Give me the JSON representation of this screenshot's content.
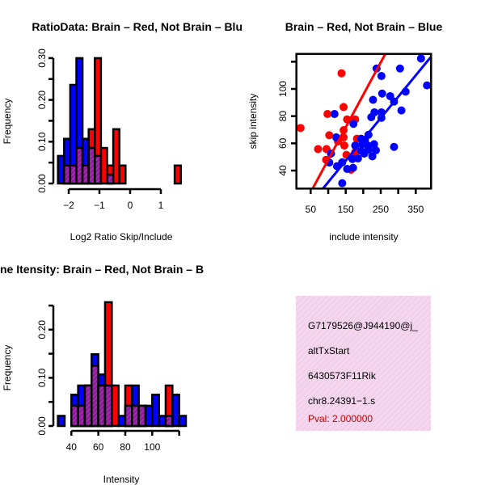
{
  "colors": {
    "group_a": "#ff0000",
    "group_b": "#0000ff",
    "overlap": "#8b1c9c",
    "panel_bg": "#f6d6ef"
  },
  "chart_data": [
    {
      "type": "bar",
      "title": "RatioData: Brain – Red, Not Brain – Blu",
      "xlabel": "Log2 Ratio Skip/Include",
      "ylabel": "Frequency",
      "bin_start": -2.35,
      "bin_width": 0.2,
      "xticks": [
        -2,
        -1,
        0,
        1
      ],
      "xtick_labels": [
        "−2",
        "−1",
        "0",
        "1"
      ],
      "yticks": [
        0,
        0.05,
        0.1,
        0.15,
        0.2,
        0.25,
        0.3
      ],
      "ytick_labels": [
        "0.00",
        "",
        "0.10",
        "",
        "0.20",
        "",
        "0.30"
      ],
      "ylim": [
        0,
        0.3
      ],
      "series": [
        {
          "name": "Not Brain",
          "color": "blue",
          "values": [
            0.066,
            0.107,
            0.236,
            0.3,
            0.107,
            0.085,
            0.066,
            0,
            0.021,
            0,
            0,
            0,
            0,
            0,
            0,
            0,
            0,
            0,
            0,
            0
          ]
        },
        {
          "name": "Brain",
          "color": "red",
          "values": [
            0,
            0.043,
            0.043,
            0.085,
            0.043,
            0.13,
            0.3,
            0.085,
            0.043,
            0.13,
            0.043,
            0,
            0,
            0,
            0,
            0,
            0,
            0,
            0,
            0.043
          ]
        }
      ]
    },
    {
      "type": "scatter",
      "title": "Brain – Red, Not Brain – Blue",
      "xlabel": "include intensity",
      "ylabel": "skip intensity",
      "xlim": [
        9,
        394
      ],
      "ylim": [
        26.7,
        125.7
      ],
      "xticks": [
        50,
        100,
        150,
        200,
        250,
        300,
        350
      ],
      "xtick_labels": [
        "50",
        "",
        "150",
        "",
        "250",
        "",
        "350"
      ],
      "yticks": [
        40,
        60,
        80,
        100,
        120
      ],
      "ytick_labels": [
        "40",
        "60",
        "80",
        "100",
        ""
      ],
      "series": [
        {
          "name": "Brain",
          "color": "red",
          "fit": {
            "slope": 0.477,
            "intercept": 0.27
          },
          "points": [
            [
              21,
              71.3
            ],
            [
              138,
              111.5
            ],
            [
              144,
              86.7
            ],
            [
              98,
              81.6
            ],
            [
              154,
              77.6
            ],
            [
              177,
              77.6
            ],
            [
              144,
              69.7
            ],
            [
              103,
              66
            ],
            [
              126,
              63.4
            ],
            [
              144,
              64.4
            ],
            [
              146,
              58.4
            ],
            [
              182,
              63.4
            ],
            [
              71,
              55.8
            ],
            [
              95,
              55.8
            ],
            [
              152,
              51.5
            ],
            [
              94,
              47.9
            ],
            [
              177,
              53.5
            ],
            [
              165,
              40.6
            ],
            [
              128,
              61.4
            ]
          ]
        },
        {
          "name": "Not Brain",
          "color": "blue",
          "fit": {
            "slope": 0.314,
            "intercept": 0.1
          },
          "points": [
            [
              365,
              122.4
            ],
            [
              238,
              115
            ],
            [
              305,
              115
            ],
            [
              252,
              109.5
            ],
            [
              382,
              102.6
            ],
            [
              254,
              96.6
            ],
            [
              277,
              94.7
            ],
            [
              321,
              98
            ],
            [
              228,
              92
            ],
            [
              288,
              90.7
            ],
            [
              309,
              84.2
            ],
            [
              118,
              81.6
            ],
            [
              232,
              82.8
            ],
            [
              252,
              82.8
            ],
            [
              223,
              79.2
            ],
            [
              252,
              78.8
            ],
            [
              172,
              74.3
            ],
            [
              215,
              66.3
            ],
            [
              123,
              64.4
            ],
            [
              194,
              63.4
            ],
            [
              205,
              62.4
            ],
            [
              177,
              58.4
            ],
            [
              197,
              59.4
            ],
            [
              213,
              58.4
            ],
            [
              231,
              59.4
            ],
            [
              194,
              54.5
            ],
            [
              215,
              55.4
            ],
            [
              236,
              54.9
            ],
            [
              288,
              57.4
            ],
            [
              203,
              52.5
            ],
            [
              226,
              50.5
            ],
            [
              108,
              52.5
            ],
            [
              103,
              45.9
            ],
            [
              125,
              43.2
            ],
            [
              140,
              46.1
            ],
            [
              169,
              48.5
            ],
            [
              185,
              48.9
            ],
            [
              154,
              41.2
            ],
            [
              171,
              42
            ],
            [
              140,
              30.7
            ]
          ]
        }
      ]
    },
    {
      "type": "bar",
      "title": "ne Itensity: Brain – Red, Not Brain – B",
      "xlabel": "Intensity",
      "ylabel": "Frequency",
      "bin_start": 30,
      "bin_width": 5,
      "xticks": [
        40,
        60,
        80,
        100,
        120
      ],
      "xtick_labels": [
        "40",
        "60",
        "80",
        "100",
        ""
      ],
      "yticks": [
        0,
        0.05,
        0.1,
        0.15,
        0.2,
        0.25
      ],
      "ytick_labels": [
        "0.00",
        "",
        "0.10",
        "",
        "0.20",
        ""
      ],
      "ylim": [
        0,
        0.257
      ],
      "series": [
        {
          "name": "Not Brain",
          "color": "blue",
          "values": [
            0.021,
            0,
            0.065,
            0.084,
            0.084,
            0.149,
            0.107,
            0.084,
            0,
            0.021,
            0.042,
            0.084,
            0.042,
            0.042,
            0.065,
            0.021,
            0.021,
            0.065,
            0.021
          ]
        },
        {
          "name": "Brain",
          "color": "red",
          "values": [
            0,
            0,
            0.042,
            0.042,
            0.084,
            0.125,
            0.084,
            0.257,
            0.084,
            0,
            0.084,
            0.042,
            0.042,
            0,
            0,
            0,
            0.084,
            0,
            0
          ]
        }
      ]
    }
  ],
  "info_panel": {
    "lines": [
      "G7179526@J944190@j_",
      "altTxStart",
      "6430573F11Rik",
      "chr8.24391−1.s"
    ],
    "pval": "Pval: 2.000000"
  }
}
